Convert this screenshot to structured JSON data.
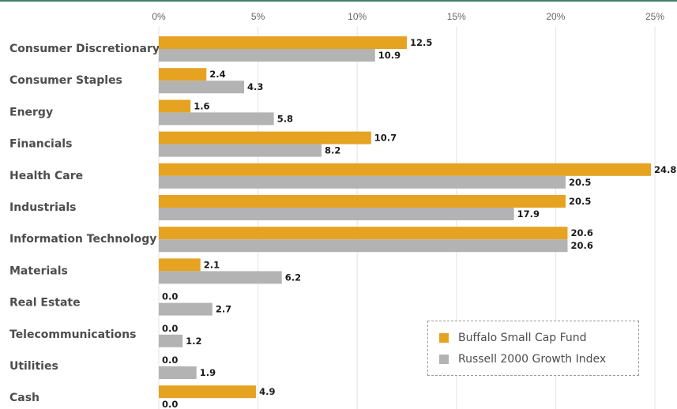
{
  "chart_data": {
    "type": "bar",
    "orientation": "horizontal",
    "categories": [
      "Consumer Discretionary",
      "Consumer Staples",
      "Energy",
      "Financials",
      "Health Care",
      "Industrials",
      "Information Technology",
      "Materials",
      "Real Estate",
      "Telecommunications",
      "Utilities",
      "Cash"
    ],
    "series": [
      {
        "name": "Buffalo Small Cap Fund",
        "color": "#e5a321",
        "values": [
          12.5,
          2.4,
          1.6,
          10.7,
          24.8,
          20.5,
          20.6,
          2.1,
          0.0,
          0.0,
          0.0,
          4.9
        ],
        "labels": [
          "12.5",
          "2.4",
          "1.6",
          "10.7",
          "24.8",
          "20.5",
          "20.6",
          "2.1",
          "0.0",
          "0.0",
          "0.0",
          "4.9"
        ]
      },
      {
        "name": "Russell 2000 Growth Index",
        "color": "#b3b3b3",
        "values": [
          10.9,
          4.3,
          5.8,
          8.2,
          20.5,
          17.9,
          20.6,
          6.2,
          2.7,
          1.2,
          1.9,
          0.0
        ],
        "labels": [
          "10.9",
          "4.3",
          "5.8",
          "8.2",
          "20.5",
          "17.9",
          "20.6",
          "6.2",
          "2.7",
          "1.2",
          "1.9",
          "0.0"
        ]
      }
    ],
    "xlim": [
      0,
      25
    ],
    "ticks": [
      0,
      5,
      10,
      15,
      20,
      25
    ],
    "tick_labels": [
      "0%",
      "5%",
      "10%",
      "15%",
      "20%",
      "25%"
    ],
    "tick_position": "top",
    "grid": true,
    "legend_position": "bottom-right"
  },
  "colors": {
    "top_rule": "#3f7f6c",
    "grid": "#e3e3e3"
  }
}
